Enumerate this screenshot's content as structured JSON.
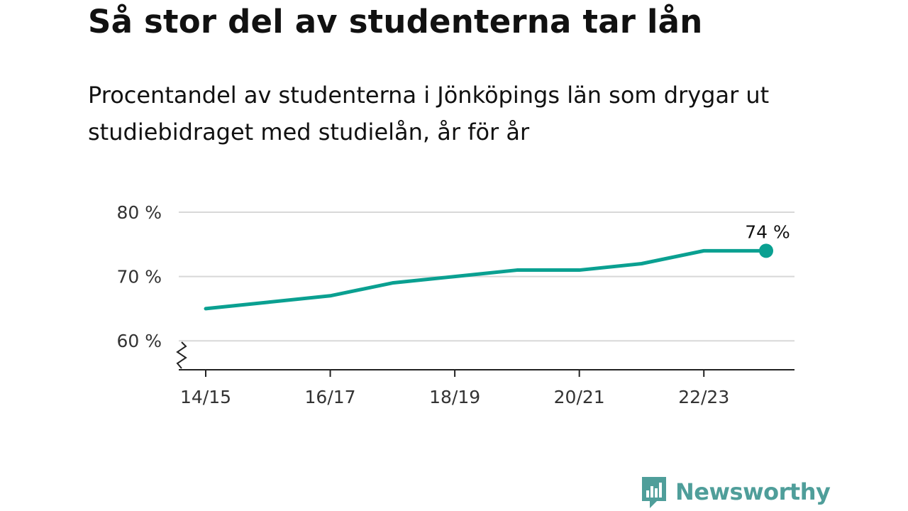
{
  "title": "Så stor del av studenterna tar lån",
  "subtitle": "Procentandel av studenterna i Jönköpings län som drygar ut studiebidraget med studielån, år för år",
  "brand": {
    "name": "Newsworthy",
    "icon": "newsworthy-logo-icon",
    "color": "#4f9e9a"
  },
  "chart_data": {
    "type": "line",
    "title": "Så stor del av studenterna tar lån",
    "subtitle": "Procentandel av studenterna i Jönköpings län som drygar ut studiebidraget med studielån, år för år",
    "xlabel": "",
    "ylabel": "",
    "x": [
      "14/15",
      "15/16",
      "16/17",
      "17/18",
      "18/19",
      "19/20",
      "20/21",
      "21/22",
      "22/23",
      "23/24"
    ],
    "x_tick_labels": [
      "14/15",
      "16/17",
      "18/19",
      "20/21",
      "22/23"
    ],
    "series": [
      {
        "values": [
          65,
          66,
          67,
          69,
          70,
          71,
          71,
          72,
          74,
          74
        ],
        "color": "#0aa091"
      }
    ],
    "y_ticks": [
      60,
      70,
      80
    ],
    "y_tick_labels": [
      "60 %",
      "70 %",
      "80 %"
    ],
    "ylim": [
      55.5,
      80
    ],
    "y_axis_break": true,
    "grid": true,
    "end_label": "74 %"
  }
}
